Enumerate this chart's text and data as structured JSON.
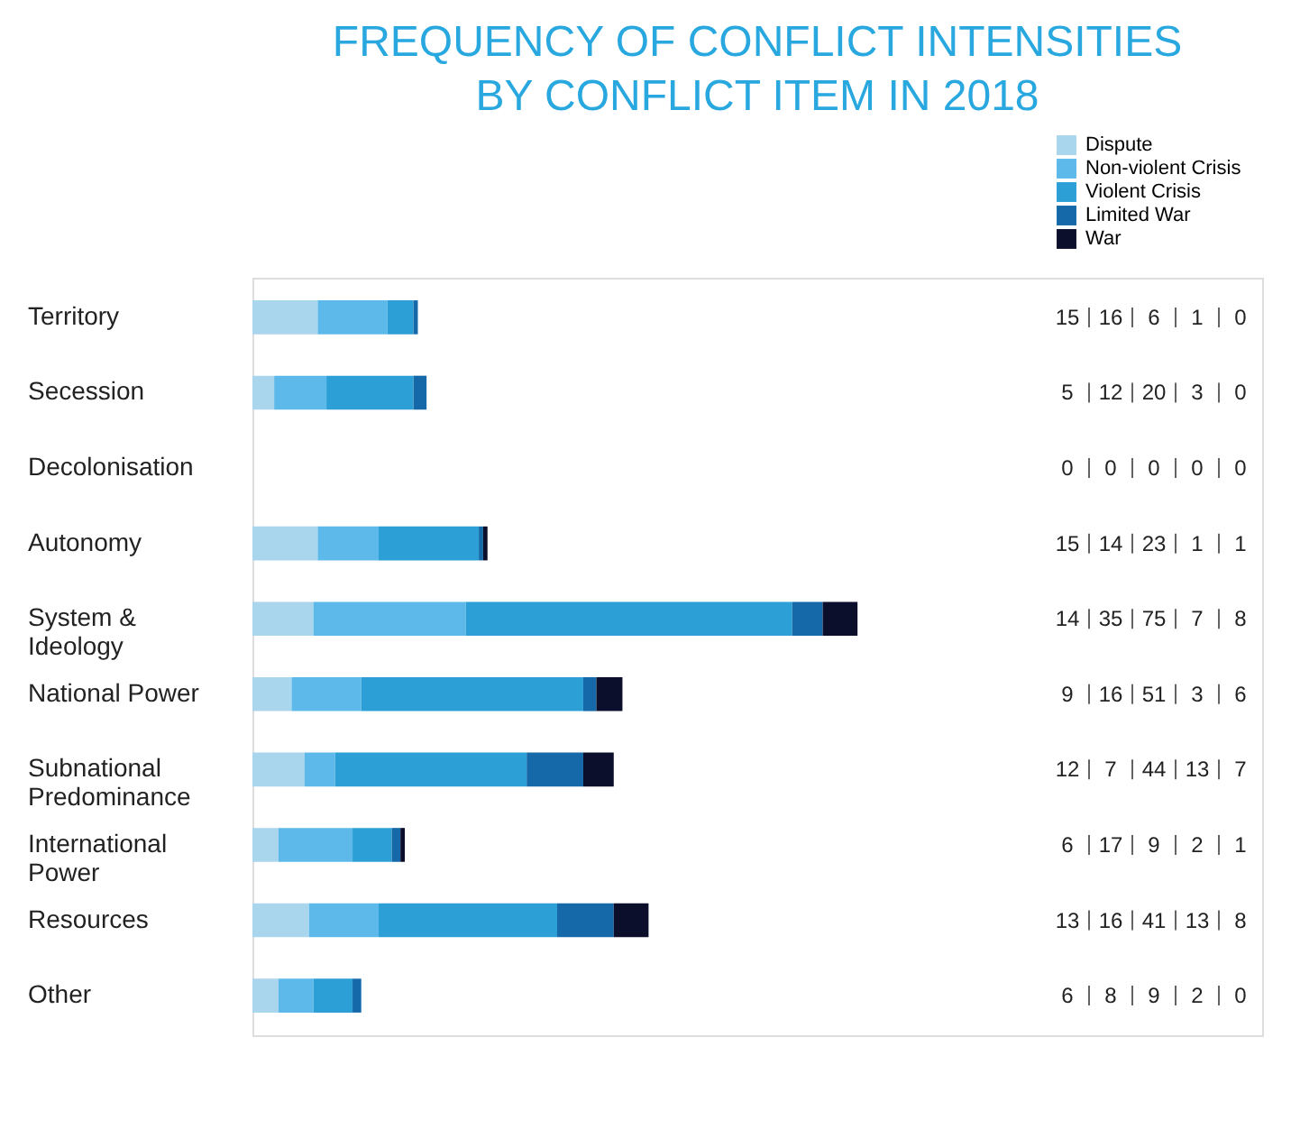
{
  "chart_data": {
    "type": "bar",
    "title": "FREQUENCY OF CONFLICT INTENSITIES\nBY CONFLICT ITEM IN 2018",
    "orientation": "horizontal",
    "stacked": true,
    "data_labels": true,
    "legend": "top right",
    "grid": false,
    "categories": [
      "Territory",
      "Secession",
      "Decolonisation",
      "Autonomy",
      "System &\nIdeology",
      "National Power",
      "Subnational\nPredominance",
      "International\nPower",
      "Resources",
      "Other"
    ],
    "series": [
      {
        "name": "Dispute",
        "color": "#a9d5ed",
        "values": [
          15,
          5,
          0,
          15,
          14,
          9,
          12,
          6,
          13,
          6
        ]
      },
      {
        "name": "Non-violent Crisis",
        "color": "#5cb9ea",
        "values": [
          16,
          12,
          0,
          14,
          35,
          16,
          7,
          17,
          16,
          8
        ]
      },
      {
        "name": "Violent Crisis",
        "color": "#2b9fd6",
        "values": [
          6,
          20,
          0,
          23,
          75,
          51,
          44,
          9,
          41,
          9
        ]
      },
      {
        "name": "Limited War",
        "color": "#1569a8",
        "values": [
          1,
          3,
          0,
          1,
          7,
          3,
          13,
          2,
          13,
          2
        ]
      },
      {
        "name": "War",
        "color": "#0b0f2b",
        "values": [
          0,
          0,
          0,
          1,
          8,
          6,
          7,
          1,
          8,
          0
        ]
      }
    ]
  }
}
